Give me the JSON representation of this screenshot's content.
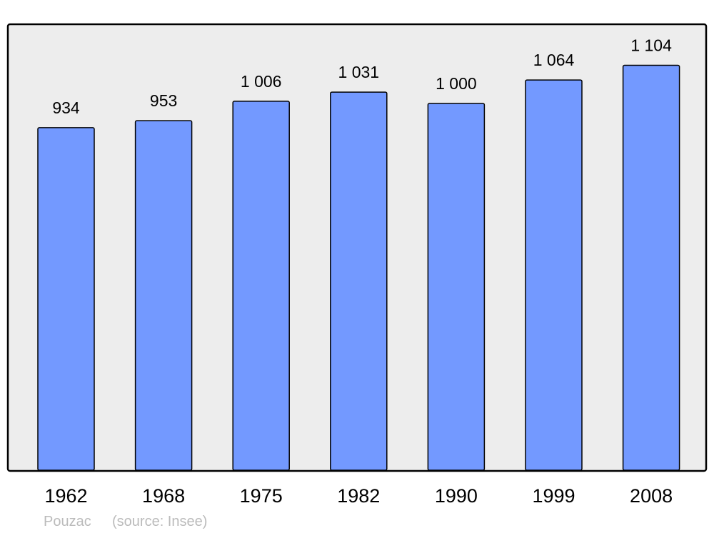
{
  "chart_data": {
    "type": "bar",
    "categories": [
      "1962",
      "1968",
      "1975",
      "1982",
      "1990",
      "1999",
      "2008"
    ],
    "values": [
      934,
      953,
      1006,
      1031,
      1000,
      1064,
      1104
    ],
    "data_labels": [
      "934",
      "953",
      "1 006",
      "1 031",
      "1 000",
      "1 064",
      "1 104"
    ],
    "ylim": [
      0,
      1214
    ],
    "grid": false,
    "colors": {
      "bar": "#7399ff",
      "plot_background": "#ededed",
      "frame": "#000000",
      "caption": "#bbbbbb"
    }
  },
  "caption": {
    "place": "Pouzac",
    "source": "(source: Insee)"
  }
}
